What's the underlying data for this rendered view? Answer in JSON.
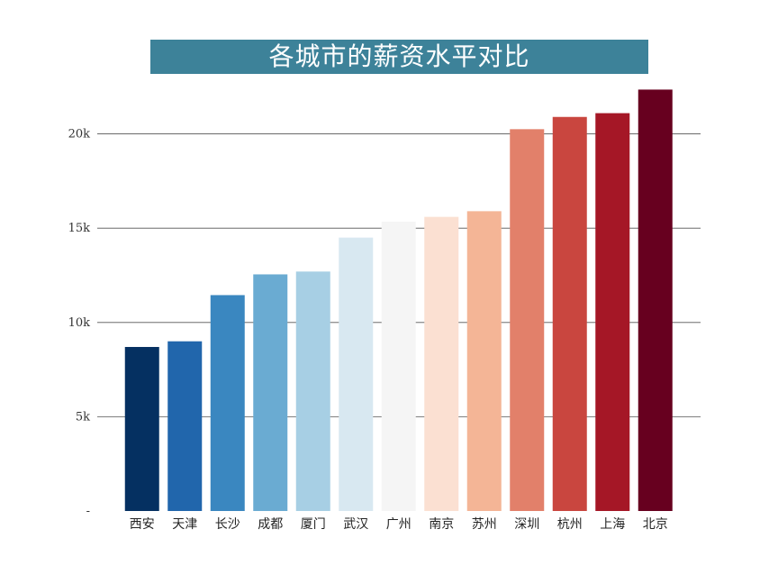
{
  "chart_data": {
    "type": "bar",
    "title": "各城市的薪资水平对比",
    "xlabel": "",
    "ylabel": "",
    "categories": [
      "西安",
      "天津",
      "长沙",
      "成都",
      "厦门",
      "武汉",
      "广州",
      "南京",
      "苏州",
      "深圳",
      "杭州",
      "上海",
      "北京"
    ],
    "values": [
      8700,
      9000,
      11450,
      12550,
      12700,
      14500,
      15350,
      15600,
      15900,
      20250,
      20900,
      21100,
      22350
    ],
    "colors": [
      "#053061",
      "#2166ac",
      "#3a87c0",
      "#6aabd2",
      "#a7cfe4",
      "#d8e8f1",
      "#f5f5f5",
      "#fbe0d2",
      "#f4b596",
      "#e2806a",
      "#c9463f",
      "#a51726",
      "#67001f"
    ],
    "ylim": [
      0,
      22800
    ],
    "yticks": [
      {
        "value": 0,
        "label": "-"
      },
      {
        "value": 5000,
        "label": "5k"
      },
      {
        "value": 10000,
        "label": "10k"
      },
      {
        "value": 15000,
        "label": "15k"
      },
      {
        "value": 20000,
        "label": "20k"
      }
    ],
    "grid": "horizontal",
    "legend": "none",
    "title_background": "#3d8299",
    "title_color": "#ffffff"
  }
}
